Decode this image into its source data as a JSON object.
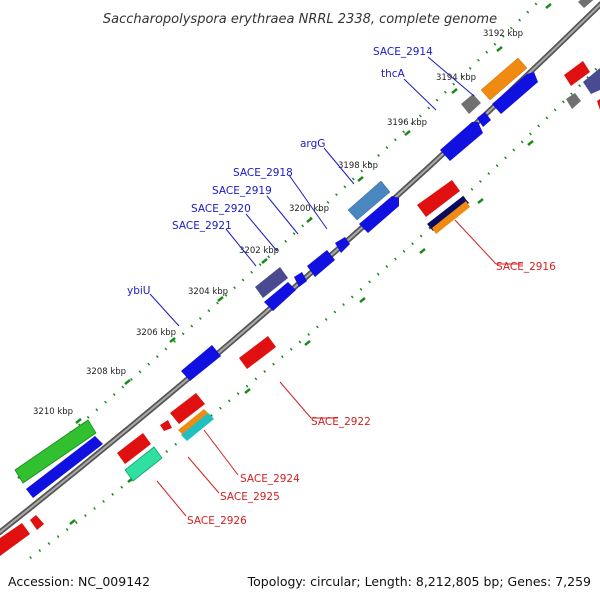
{
  "title": "Saccharopolyspora erythraea NRRL 2338, complete genome",
  "footer": {
    "accession": "Accession: NC_009142",
    "stats": "Topology: circular; Length: 8,212,805 bp; Genes: 7,259"
  },
  "ticks": [
    "3192 kbp",
    "3194 kbp",
    "3196 kbp",
    "3198 kbp",
    "3200 kbp",
    "3202 kbp",
    "3204 kbp",
    "3206 kbp",
    "3208 kbp",
    "3210 kbp"
  ],
  "labels": {
    "sace2914": "SACE_2914",
    "thcA": "thcA",
    "argG": "argG",
    "sace2918": "SACE_2918",
    "sace2919": "SACE_2919",
    "sace2920": "SACE_2920",
    "sace2921": "SACE_2921",
    "ybiU": "ybiU",
    "sace2916": "SACE_2916",
    "sace2922": "SACE_2922",
    "sace2924": "SACE_2924",
    "sace2925": "SACE_2925",
    "sace2926": "SACE_2926"
  },
  "colors": {
    "blue": "#1010e0",
    "red": "#e01010",
    "orange": "#f08a10",
    "gray": "#707070",
    "purple": "#4a4a90",
    "steelblue": "#4a86c0",
    "green": "#30c030",
    "cyan": "#20c0c0",
    "teal": "#30e0a0",
    "navy": "#0a0a60",
    "backbone": "#888888",
    "tickgreen": "#1a8a1a"
  }
}
